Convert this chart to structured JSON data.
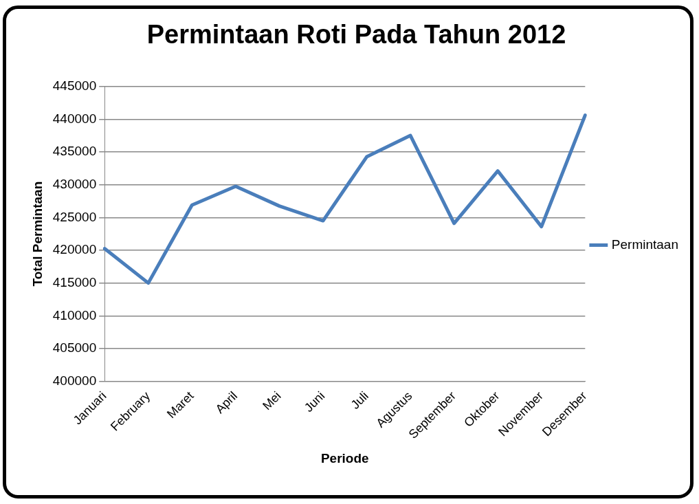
{
  "chart_data": {
    "type": "line",
    "title": "Permintaan Roti Pada Tahun 2012",
    "xlabel": "Periode",
    "ylabel": "Total Permintaan",
    "categories": [
      "Januari",
      "February",
      "Maret",
      "April",
      "Mei",
      "Juni",
      "Juli",
      "Agustus",
      "September",
      "Oktober",
      "November",
      "Desember"
    ],
    "series": [
      {
        "name": "Permintaan",
        "color": "#4a7ebb",
        "values": [
          420250,
          415000,
          426900,
          429750,
          426750,
          424500,
          434250,
          437500,
          424100,
          432100,
          423600,
          440600
        ]
      }
    ],
    "ylim": [
      400000,
      445000
    ],
    "yticks": [
      400000,
      405000,
      410000,
      415000,
      420000,
      425000,
      430000,
      435000,
      440000,
      445000
    ],
    "grid": "y",
    "legend": "right",
    "marker": "none",
    "line_style": "solid"
  }
}
